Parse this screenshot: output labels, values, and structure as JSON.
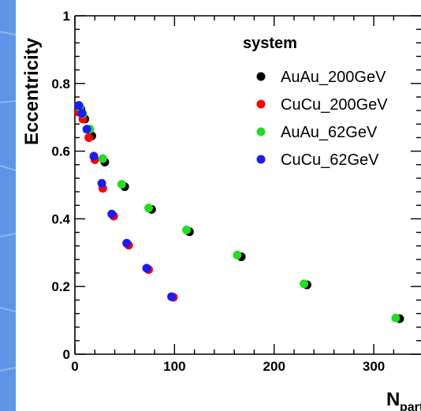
{
  "chart_data": {
    "type": "scatter",
    "xlabel": "N",
    "xlabel_sub": "part",
    "ylabel": "Eccentricity",
    "xlim": [
      0,
      330
    ],
    "ylim": [
      0,
      1
    ],
    "xticks": [
      0,
      100,
      200,
      300
    ],
    "yticks": [
      0,
      0.2,
      0.4,
      0.6,
      0.8,
      1
    ],
    "ytick_labels": [
      "0",
      "0.2",
      "0.4",
      "0.6",
      "0.8",
      "1"
    ],
    "legend": {
      "title": "system",
      "placement": "top-right"
    },
    "series": [
      {
        "name": "AuAu_200GeV",
        "color": "#000000",
        "points": [
          [
            326,
            0.105
          ],
          [
            233,
            0.205
          ],
          [
            167,
            0.288
          ],
          [
            115,
            0.362
          ],
          [
            77,
            0.428
          ],
          [
            50,
            0.495
          ],
          [
            30,
            0.568
          ],
          [
            17,
            0.645
          ],
          [
            10,
            0.695
          ],
          [
            6,
            0.725
          ]
        ]
      },
      {
        "name": "CuCu_200GeV",
        "color": "#ff0000",
        "points": [
          [
            99,
            0.168
          ],
          [
            74,
            0.25
          ],
          [
            54,
            0.322
          ],
          [
            39,
            0.408
          ],
          [
            28,
            0.49
          ],
          [
            20,
            0.575
          ],
          [
            14,
            0.64
          ],
          [
            8,
            0.695
          ],
          [
            4,
            0.715
          ]
        ]
      },
      {
        "name": "AuAu_62GeV",
        "color": "#22dd22",
        "points": [
          [
            322,
            0.107
          ],
          [
            230,
            0.208
          ],
          [
            163,
            0.293
          ],
          [
            112,
            0.367
          ],
          [
            74,
            0.432
          ],
          [
            47,
            0.502
          ],
          [
            28,
            0.578
          ],
          [
            15,
            0.665
          ],
          [
            8,
            0.71
          ],
          [
            5,
            0.73
          ]
        ]
      },
      {
        "name": "CuCu_62GeV",
        "color": "#1a1aff",
        "points": [
          [
            97,
            0.17
          ],
          [
            72,
            0.254
          ],
          [
            52,
            0.328
          ],
          [
            37,
            0.414
          ],
          [
            27,
            0.505
          ],
          [
            19,
            0.585
          ],
          [
            12,
            0.665
          ],
          [
            7,
            0.712
          ],
          [
            4,
            0.735
          ]
        ]
      }
    ]
  }
}
